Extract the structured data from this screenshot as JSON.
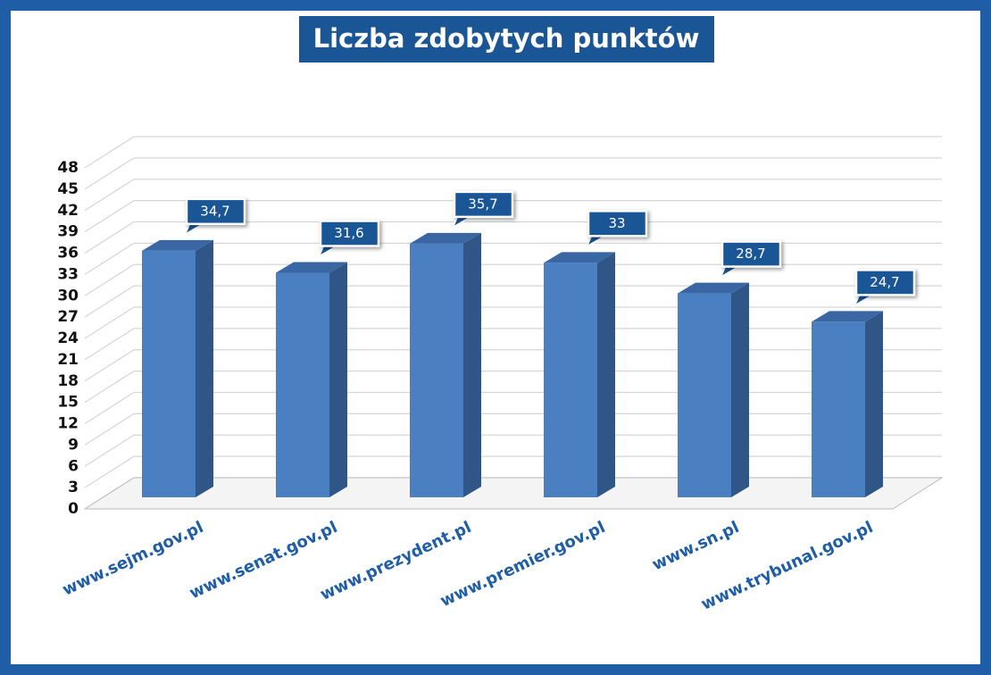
{
  "chart_data": {
    "type": "bar",
    "title": "Liczba zdobytych punktów",
    "categories": [
      "www.sejm.gov.pl",
      "www.senat.gov.pl",
      "www.prezydent.pl",
      "www.premier.gov.pl",
      "www.sn.pl",
      "www.trybunal.gov.pl"
    ],
    "values": [
      34.7,
      31.6,
      35.7,
      33,
      28.7,
      24.7
    ],
    "value_labels": [
      "34,7",
      "31,6",
      "35,7",
      "33",
      "28,7",
      "24,7"
    ],
    "color": "#4a7fc2",
    "ylim": [
      0,
      48
    ],
    "yticks": [
      0,
      3,
      6,
      9,
      12,
      15,
      18,
      21,
      24,
      27,
      30,
      33,
      36,
      39,
      42,
      45,
      48
    ],
    "grid": true
  }
}
